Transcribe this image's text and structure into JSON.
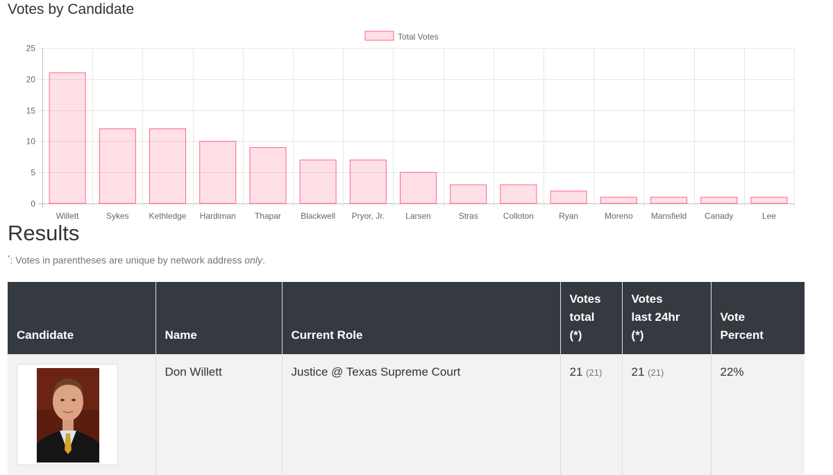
{
  "chart_section": {
    "title": "Votes by Candidate"
  },
  "chart_data": {
    "type": "bar",
    "title": "Votes by Candidate",
    "categories": [
      "Willett",
      "Sykes",
      "Kethledge",
      "Hardiman",
      "Thapar",
      "Blackwell",
      "Pryor, Jr.",
      "Larsen",
      "Stras",
      "Colloton",
      "Ryan",
      "Moreno",
      "Mansfield",
      "Canady",
      "Lee"
    ],
    "series": [
      {
        "name": "Total Votes",
        "values": [
          21,
          12,
          12,
          10,
          9,
          7,
          7,
          5,
          3,
          3,
          2,
          1,
          1,
          1,
          1
        ]
      }
    ],
    "ylim": [
      0,
      25
    ],
    "yticks": [
      0,
      5,
      10,
      15,
      20,
      25
    ],
    "grid": true,
    "legend_position": "top-center",
    "colors": {
      "fill": "rgba(255,99,132,0.2)",
      "stroke": "#ff6384"
    }
  },
  "results": {
    "title": "Results",
    "note": {
      "marker": "*",
      "text": ": Votes in parentheses are unique by network address ",
      "emphasis": "only",
      "end": "."
    },
    "columns": {
      "candidate": "Candidate",
      "name": "Name",
      "role": "Current Role",
      "votes_total": [
        "Votes",
        "total",
        "(*)"
      ],
      "votes_24hr": [
        "Votes",
        "last 24hr",
        "(*)"
      ],
      "percent": [
        "Vote",
        "Percent"
      ]
    },
    "rows": [
      {
        "name": "Don Willett",
        "role": "Justice @ Texas Supreme Court",
        "votes_total": "21",
        "votes_total_unique": "(21)",
        "votes_24hr": "21",
        "votes_24hr_unique": "(21)",
        "percent": "22%"
      }
    ]
  }
}
